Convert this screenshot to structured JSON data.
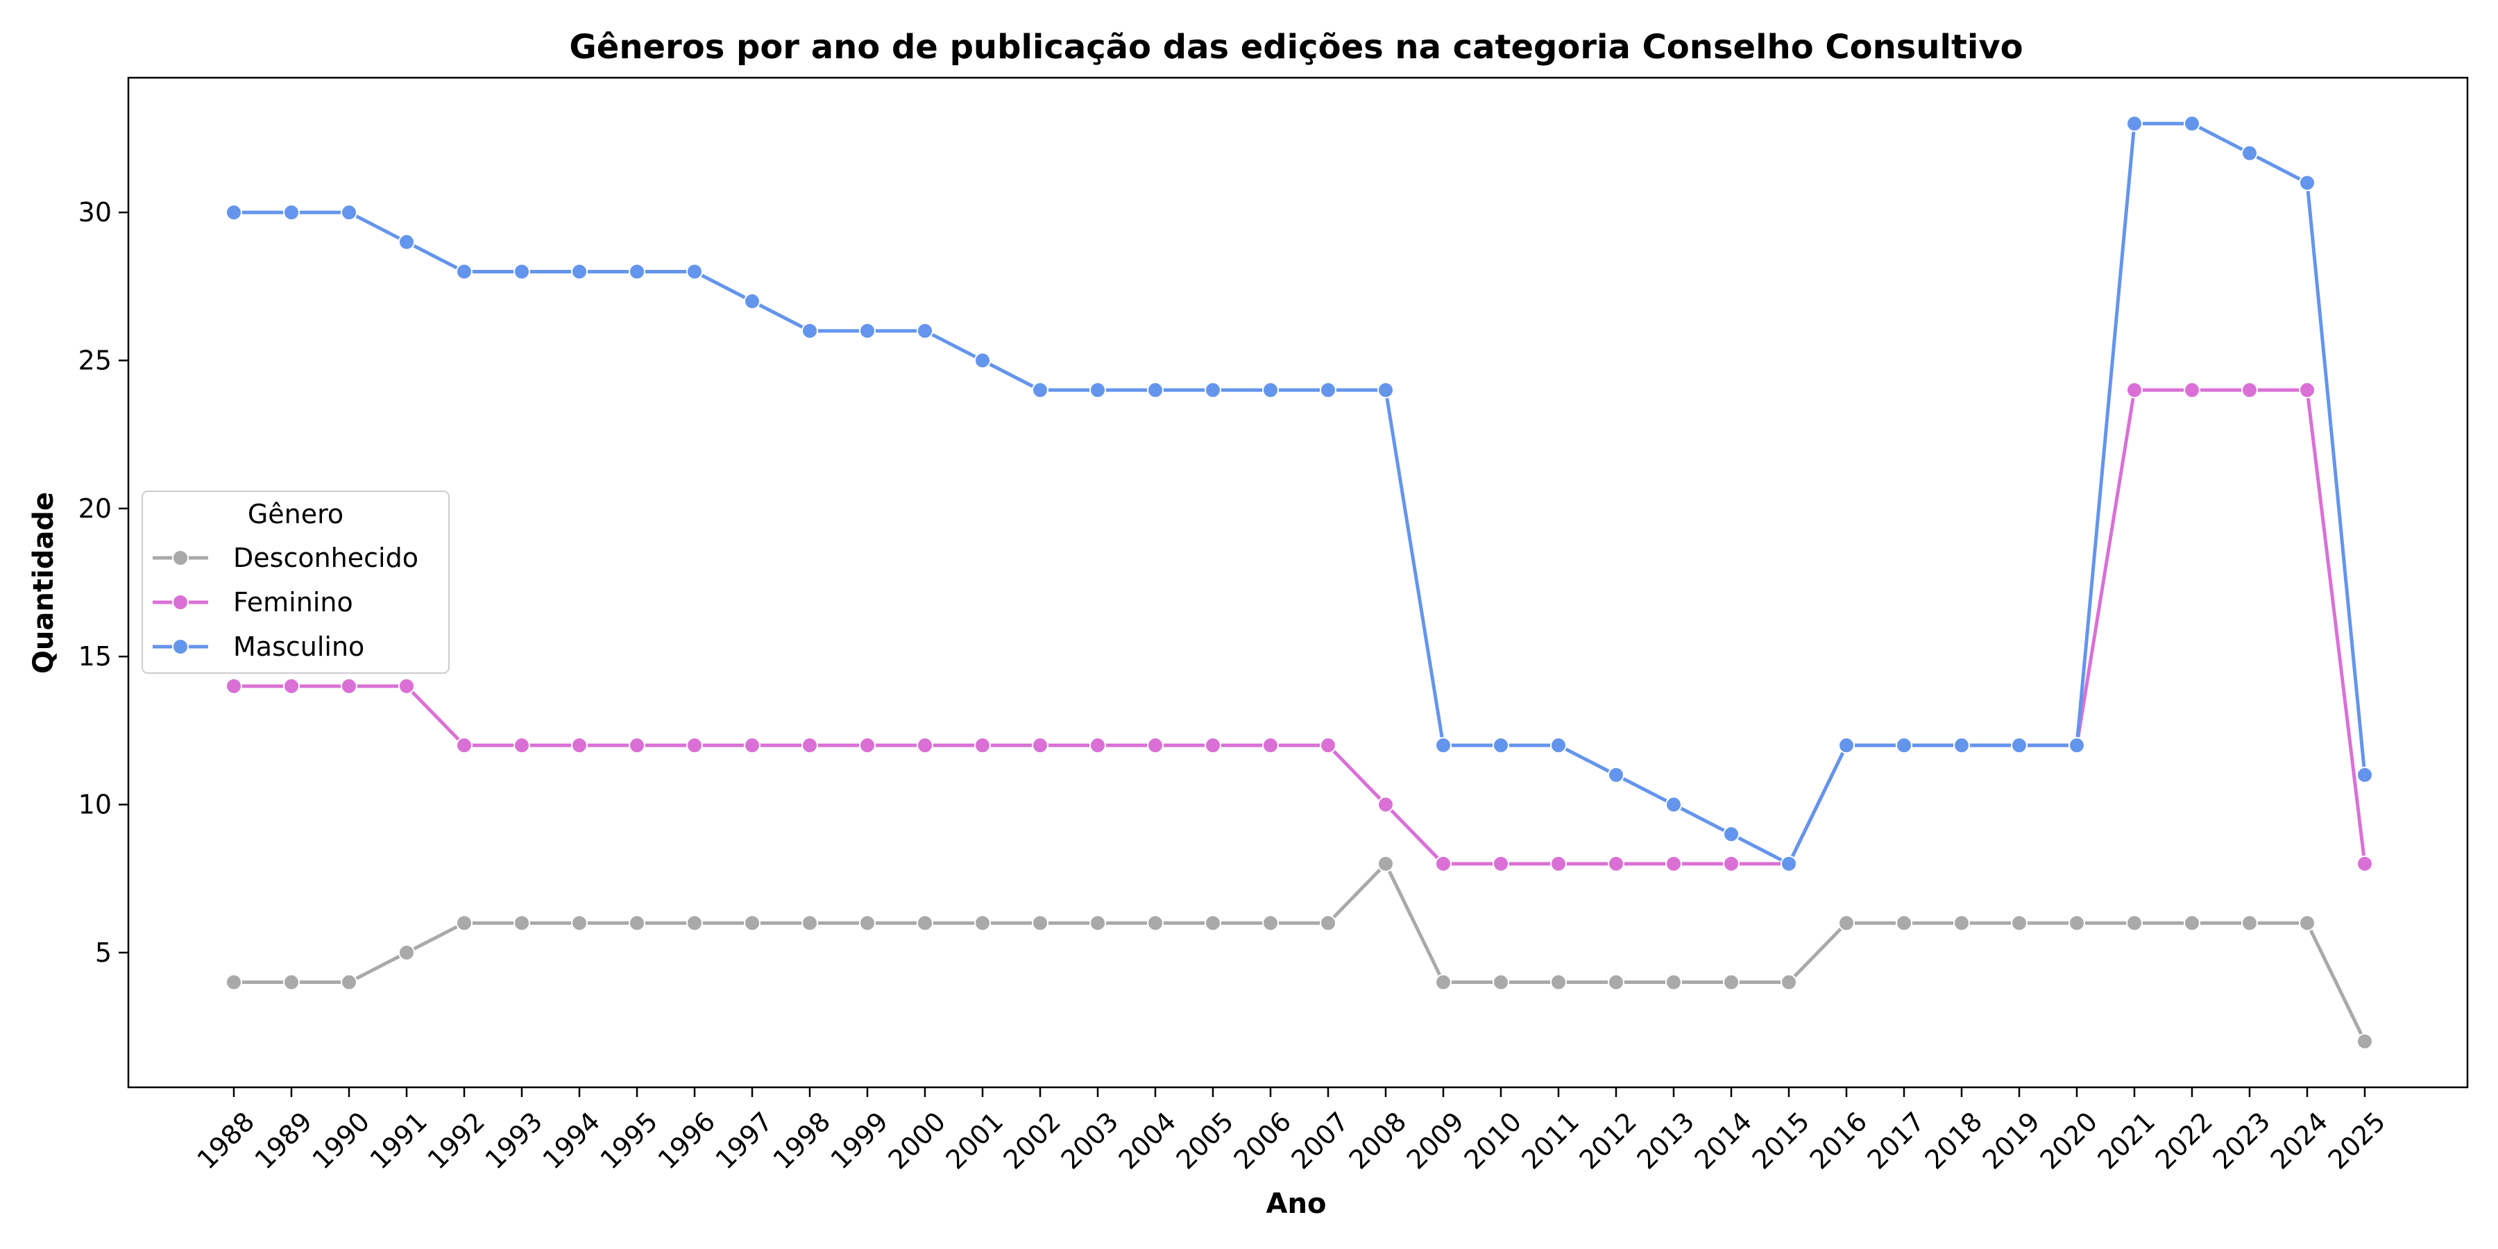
{
  "chart_data": {
    "type": "line",
    "title": "Gêneros por ano de publicação das edições na categoria Conselho Consultivo",
    "xlabel": "Ano",
    "ylabel": "Quantidade",
    "x": [
      "1988",
      "1989",
      "1990",
      "1991",
      "1992",
      "1993",
      "1994",
      "1995",
      "1996",
      "1997",
      "1998",
      "1999",
      "2000",
      "2001",
      "2002",
      "2003",
      "2004",
      "2005",
      "2006",
      "2007",
      "2008",
      "2009",
      "2010",
      "2011",
      "2012",
      "2013",
      "2014",
      "2015",
      "2016",
      "2017",
      "2018",
      "2019",
      "2020",
      "2021",
      "2022",
      "2023",
      "2024",
      "2025"
    ],
    "yticks": [
      5,
      10,
      15,
      20,
      25,
      30
    ],
    "ylim": [
      0.45,
      34.55
    ],
    "grid": false,
    "legend": {
      "title": "Gênero",
      "placement": "center-left"
    },
    "series": [
      {
        "name": "Desconhecido",
        "color": "#a9a9a9",
        "values": [
          4,
          4,
          4,
          5,
          6,
          6,
          6,
          6,
          6,
          6,
          6,
          6,
          6,
          6,
          6,
          6,
          6,
          6,
          6,
          6,
          8,
          4,
          4,
          4,
          4,
          4,
          4,
          4,
          6,
          6,
          6,
          6,
          6,
          6,
          6,
          6,
          6,
          2
        ]
      },
      {
        "name": "Feminino",
        "color": "#da70d6",
        "values": [
          14,
          14,
          14,
          14,
          12,
          12,
          12,
          12,
          12,
          12,
          12,
          12,
          12,
          12,
          12,
          12,
          12,
          12,
          12,
          12,
          10,
          8,
          8,
          8,
          8,
          8,
          8,
          8,
          12,
          12,
          12,
          12,
          12,
          24,
          24,
          24,
          24,
          8
        ]
      },
      {
        "name": "Masculino",
        "color": "#6495ed",
        "values": [
          30,
          30,
          30,
          29,
          28,
          28,
          28,
          28,
          28,
          27,
          26,
          26,
          26,
          25,
          24,
          24,
          24,
          24,
          24,
          24,
          24,
          12,
          12,
          12,
          11,
          10,
          9,
          8,
          12,
          12,
          12,
          12,
          12,
          33,
          33,
          32,
          31,
          11
        ]
      }
    ]
  }
}
